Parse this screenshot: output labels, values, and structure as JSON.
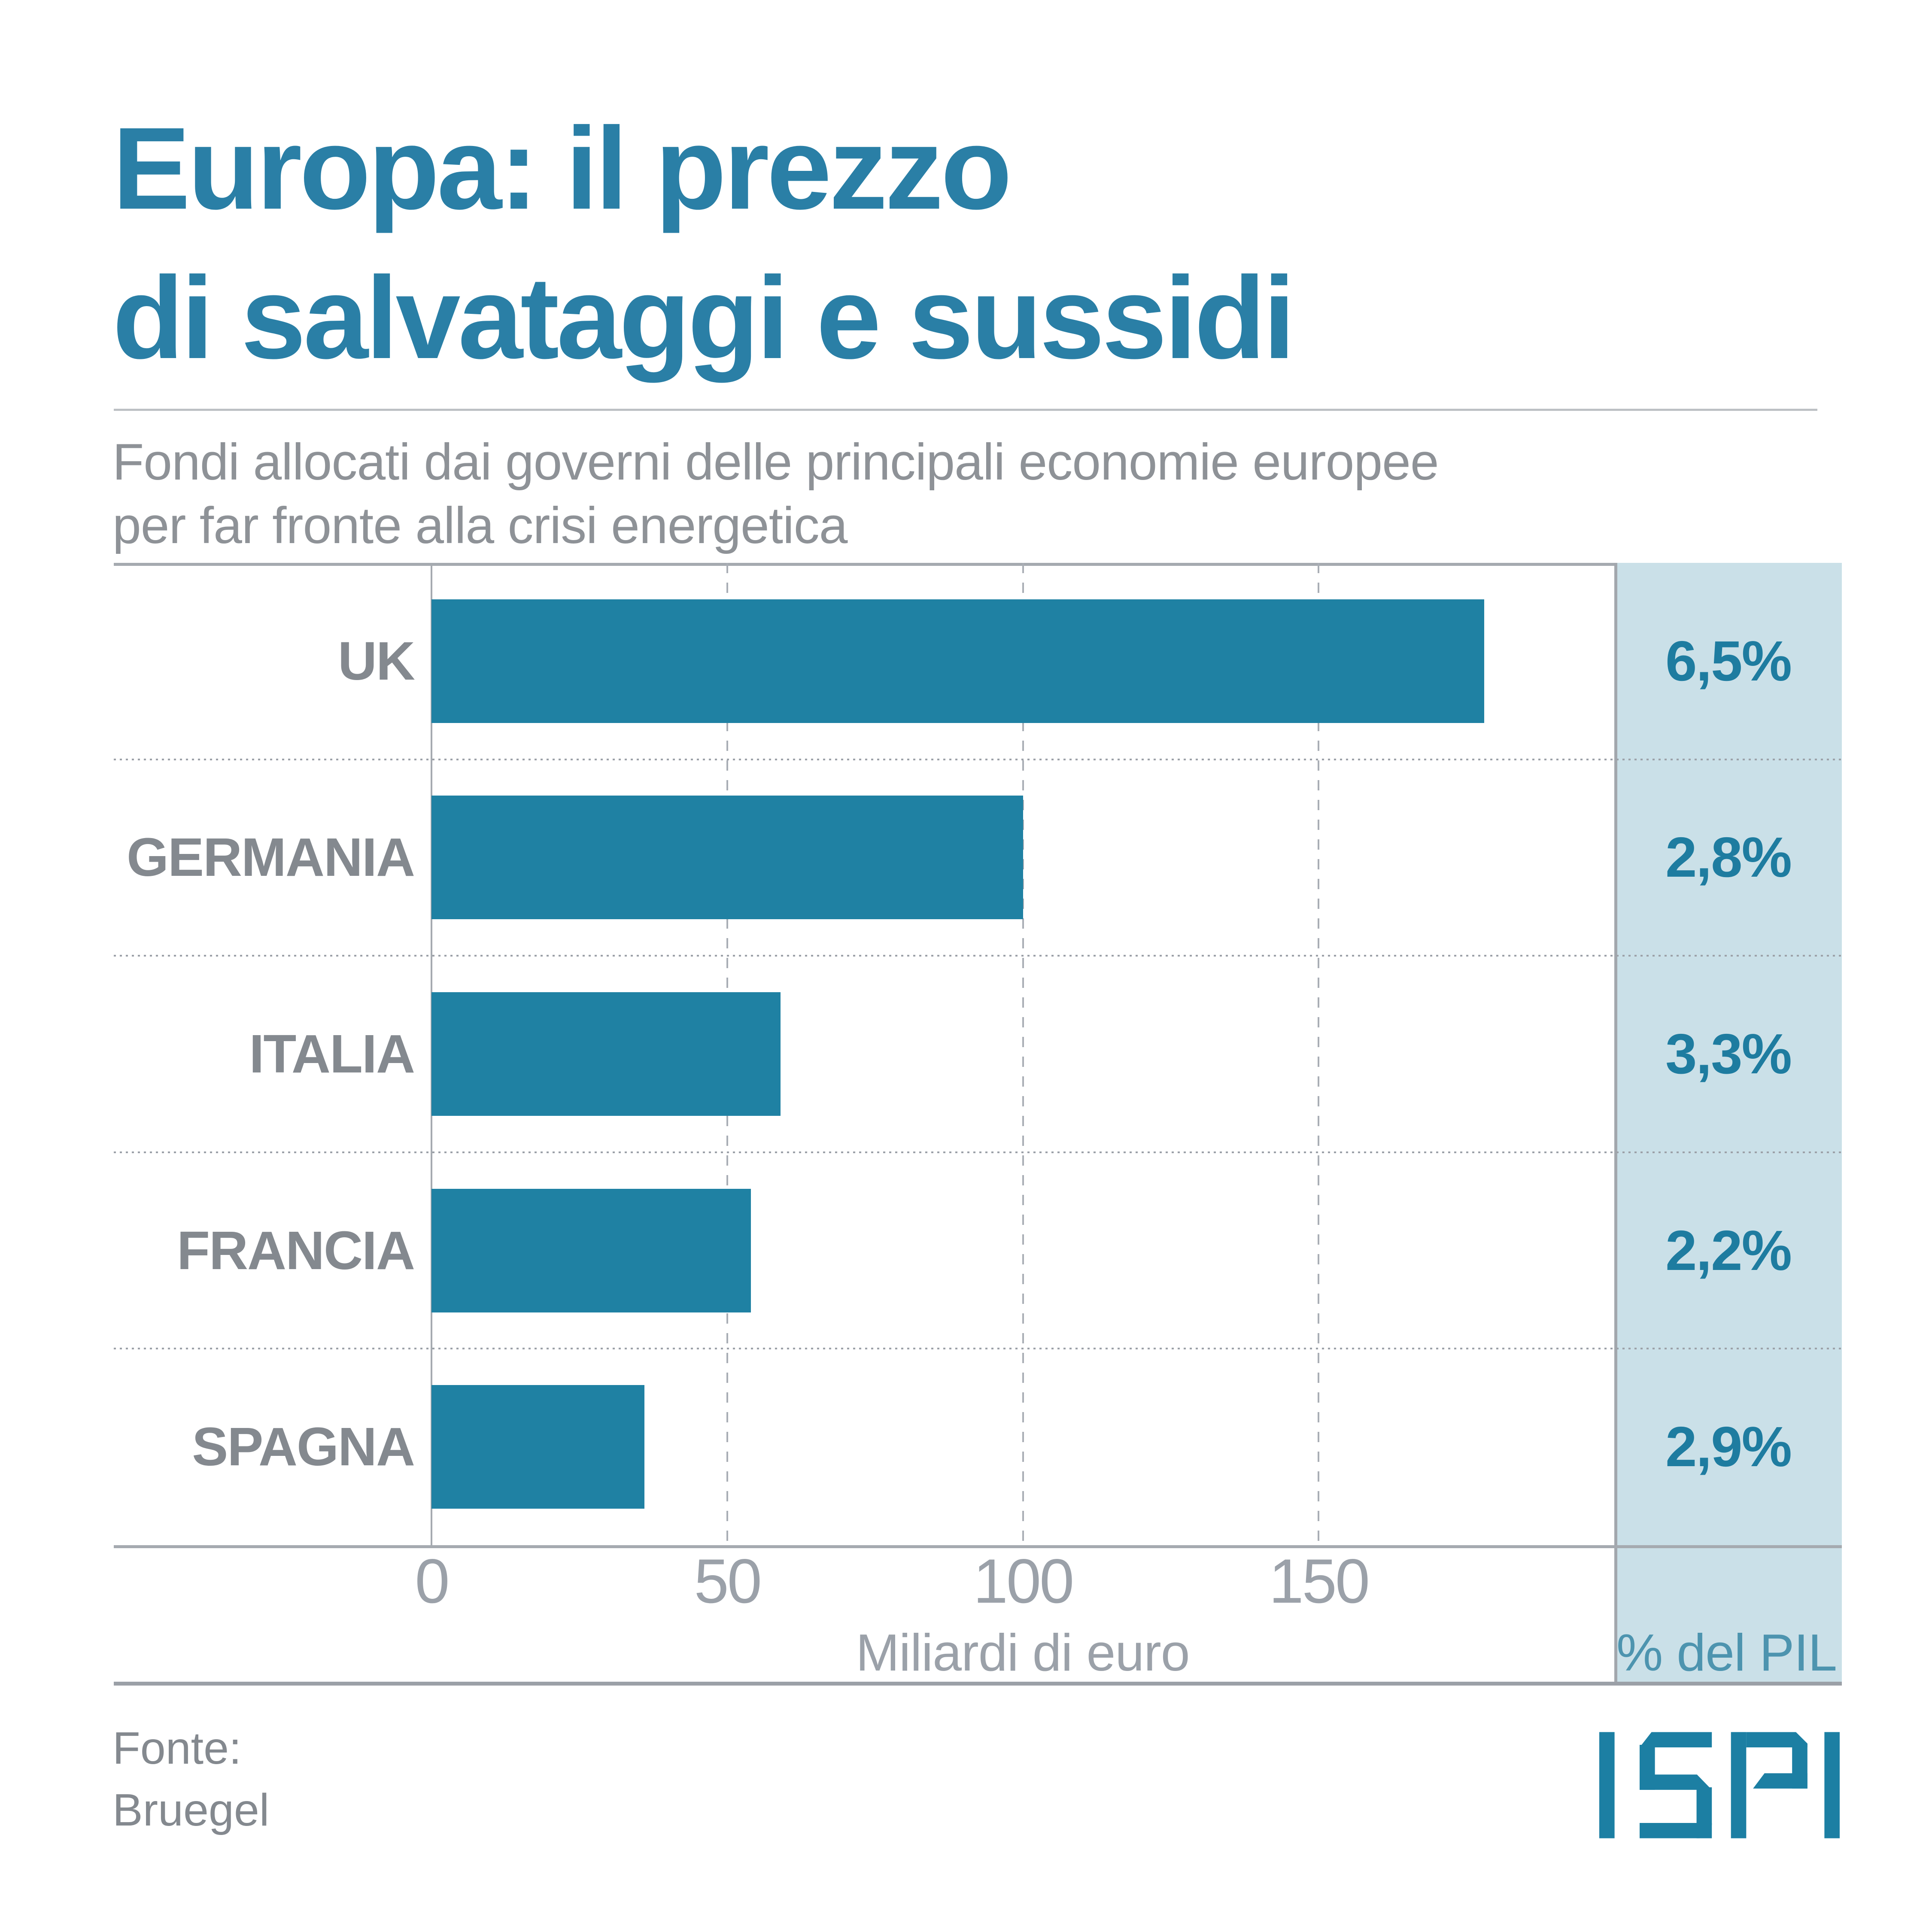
{
  "title": {
    "line1": "Europa: il prezzo",
    "line2": "di salvataggi e sussidi"
  },
  "subtitle": {
    "line1": "Fondi allocati dai governi delle principali economie europee",
    "line2": "per far fronte alla crisi energetica"
  },
  "chart_data": {
    "type": "bar",
    "orientation": "horizontal",
    "title": "Europa: il prezzo di salvataggi e sussidi",
    "categories": [
      "UK",
      "GERMANIA",
      "ITALIA",
      "FRANCIA",
      "SPAGNA"
    ],
    "values": [
      178,
      100,
      59,
      54,
      36
    ],
    "pct_gdp_labels": [
      "6,5%",
      "2,8%",
      "3,3%",
      "2,2%",
      "2,9%"
    ],
    "x_ticks": [
      0,
      50,
      100,
      150
    ],
    "xlim": [
      0,
      200
    ],
    "xlabel": "Miliardi di euro",
    "right_column_header": "% del PIL",
    "grid": "dashed-vertical-gridlines, dotted-row-separators",
    "legend": "none",
    "bar_color": "#1F81A3",
    "column_bg_color": "#CAE0E8",
    "accent_color": "#2A7FA6",
    "label_color": "#84898F"
  },
  "footer": {
    "source_line1": "Fonte:",
    "source_line2": "Bruegel",
    "logo_text": "ISPI",
    "logo_color": "#1C7FA3"
  }
}
